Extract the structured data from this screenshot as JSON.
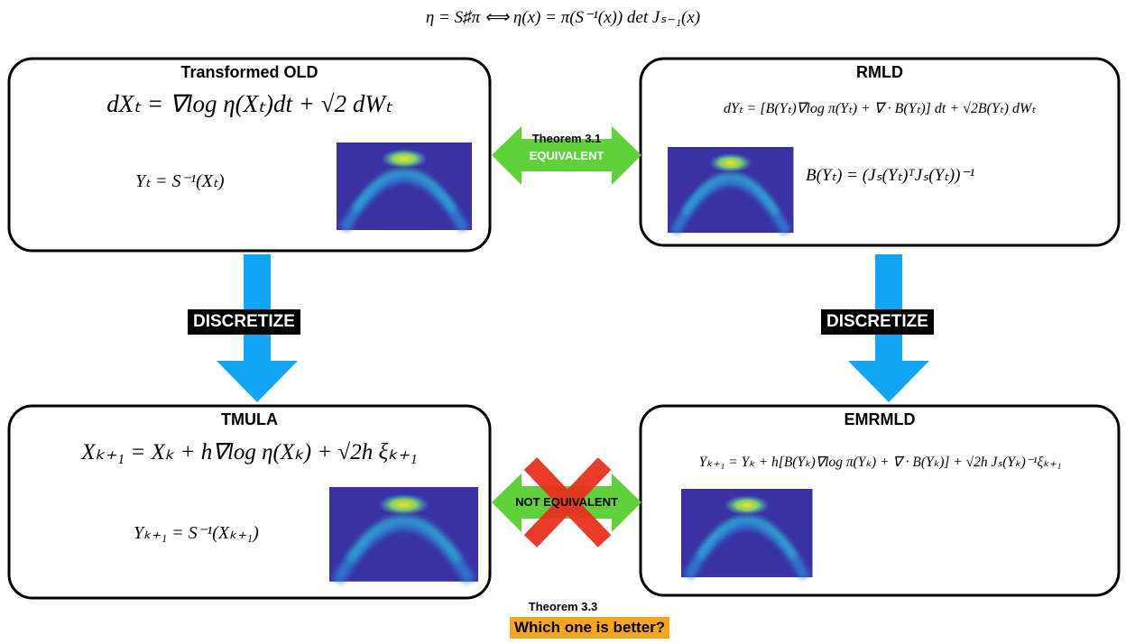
{
  "header": {
    "equation": "η = S♯π  ⟺  η(x) = π(S⁻¹(x)) det Jₛ₋₁(x)"
  },
  "boxes": [
    {
      "title": "Transformed OLD",
      "equations": [
        "dXₜ = ∇log η(Xₜ)dt + √2 dWₜ",
        "Yₜ = S⁻¹(Xₜ)"
      ]
    },
    {
      "title": "RMLD",
      "equations": [
        "dYₜ = [B(Yₜ)∇log π(Yₜ) + ∇ · B(Yₜ)] dt + √2B(Yₜ) dWₜ",
        "B(Yₜ) = (Jₛ(Yₜ)ᵀJₛ(Yₜ))⁻¹"
      ]
    },
    {
      "title": "TMULA",
      "equations": [
        "Xₖ₊₁ = Xₖ + h∇log η(Xₖ) + √2h ξₖ₊₁",
        "Yₖ₊₁ = S⁻¹(Xₖ₊₁)"
      ]
    },
    {
      "title": "EMRMLD",
      "equations": [
        "Yₖ₊₁ = Yₖ + h[B(Yₖ)∇log π(Yₖ) + ∇ · B(Yₖ)] + √2h Jₛ(Yₖ)⁻¹ξₖ₊₁"
      ]
    }
  ],
  "links": [
    {
      "theorem": "Theorem 3.1",
      "label": "EQUIVALENT"
    },
    {
      "label": "NOT EQUIVALENT"
    }
  ],
  "discretize": [
    "DISCRETIZE",
    "DISCRETIZE"
  ],
  "footer": {
    "theorem": "Theorem 3.3",
    "question": "Which one is better?"
  }
}
